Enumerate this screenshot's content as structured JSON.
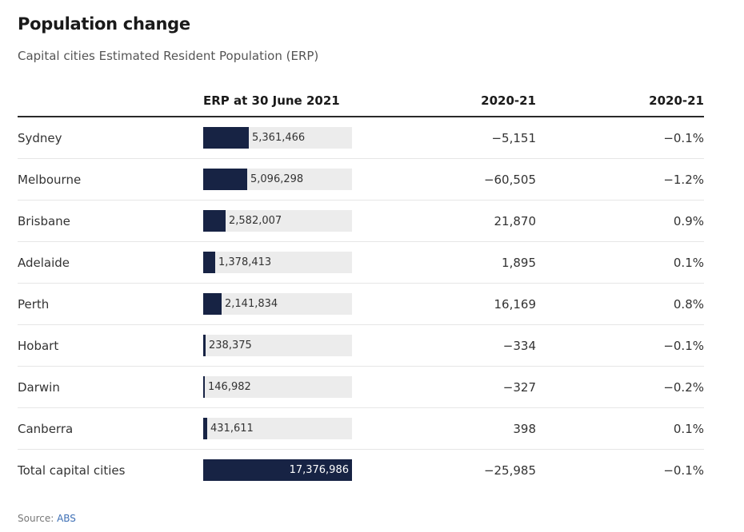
{
  "header": {
    "title": "Population change",
    "subtitle": "Capital cities Estimated Resident Population (ERP)"
  },
  "colors": {
    "bar": "#172344",
    "track": "#ececec"
  },
  "source": {
    "prefix": "Source: ",
    "link": "ABS"
  },
  "chart_data": {
    "type": "table",
    "columns": [
      "",
      "ERP at 30 June 2021",
      "2020-21",
      "2020-21"
    ],
    "bar_column": "ERP at 30 June 2021",
    "bar_max": 17376986,
    "rows": [
      {
        "name": "Sydney",
        "erp": 5361466,
        "erp_label": "5,361,466",
        "change": "−5,151",
        "pct": "−0.1%"
      },
      {
        "name": "Melbourne",
        "erp": 5096298,
        "erp_label": "5,096,298",
        "change": "−60,505",
        "pct": "−1.2%"
      },
      {
        "name": "Brisbane",
        "erp": 2582007,
        "erp_label": "2,582,007",
        "change": "21,870",
        "pct": "0.9%"
      },
      {
        "name": "Adelaide",
        "erp": 1378413,
        "erp_label": "1,378,413",
        "change": "1,895",
        "pct": "0.1%"
      },
      {
        "name": "Perth",
        "erp": 2141834,
        "erp_label": "2,141,834",
        "change": "16,169",
        "pct": "0.8%"
      },
      {
        "name": "Hobart",
        "erp": 238375,
        "erp_label": "238,375",
        "change": "−334",
        "pct": "−0.1%"
      },
      {
        "name": "Darwin",
        "erp": 146982,
        "erp_label": "146,982",
        "change": "−327",
        "pct": "−0.2%"
      },
      {
        "name": "Canberra",
        "erp": 431611,
        "erp_label": "431,611",
        "change": "398",
        "pct": "0.1%"
      },
      {
        "name": "Total capital cities",
        "erp": 17376986,
        "erp_label": "17,376,986",
        "change": "−25,985",
        "pct": "−0.1%"
      }
    ]
  }
}
